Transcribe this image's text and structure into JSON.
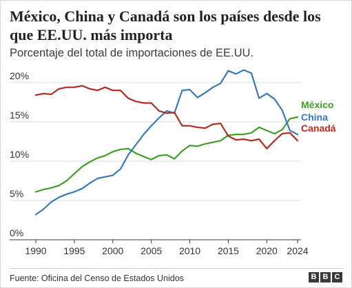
{
  "chart_data": {
    "type": "line",
    "title": "México, China y Canadá son los países desde los que EE.UU. más importa",
    "subtitle": "Porcentaje del total de importaciones de EE.UU.",
    "source": "Fuente: Oficina del Censo de Estados Unidos",
    "brand": [
      "B",
      "B",
      "C"
    ],
    "xlim": [
      1990,
      2024
    ],
    "ylim": [
      0,
      22
    ],
    "x_ticks": [
      1990,
      1995,
      2000,
      2005,
      2010,
      2015,
      2020,
      2024
    ],
    "x_tick_labels": [
      "1990",
      "1995",
      "2000",
      "2005",
      "2010",
      "2015",
      "2020",
      "2024"
    ],
    "y_ticks": [
      0,
      5,
      10,
      15,
      20
    ],
    "y_tick_labels": [
      "0%",
      "5%",
      "10%",
      "15%",
      "20%"
    ],
    "grid": "horizontal",
    "series": [
      {
        "name": "México",
        "color": "#3f9e2a",
        "x": [
          1990,
          1991,
          1992,
          1993,
          1994,
          1995,
          1996,
          1997,
          1998,
          1999,
          2000,
          2001,
          2002,
          2003,
          2004,
          2005,
          2006,
          2007,
          2008,
          2009,
          2010,
          2011,
          2012,
          2013,
          2014,
          2015,
          2016,
          2017,
          2018,
          2019,
          2020,
          2021,
          2022,
          2023,
          2024
        ],
        "values": [
          6.1,
          6.4,
          6.6,
          6.9,
          7.5,
          8.4,
          9.3,
          9.9,
          10.4,
          10.7,
          11.2,
          11.5,
          11.6,
          11.0,
          10.6,
          10.2,
          10.7,
          10.8,
          10.3,
          11.3,
          12.0,
          11.9,
          12.2,
          12.4,
          12.6,
          13.3,
          13.4,
          13.4,
          13.6,
          14.3,
          13.9,
          13.5,
          14.0,
          15.4,
          15.6
        ]
      },
      {
        "name": "China",
        "color": "#3a78b3",
        "x": [
          1990,
          1991,
          1992,
          1993,
          1994,
          1995,
          1996,
          1997,
          1998,
          1999,
          2000,
          2001,
          2002,
          2003,
          2004,
          2005,
          2006,
          2007,
          2008,
          2009,
          2010,
          2011,
          2012,
          2013,
          2014,
          2015,
          2016,
          2017,
          2018,
          2019,
          2020,
          2021,
          2022,
          2023,
          2024
        ],
        "values": [
          3.2,
          3.9,
          4.8,
          5.4,
          5.8,
          6.1,
          6.5,
          7.2,
          7.8,
          8.0,
          8.2,
          9.0,
          10.8,
          12.1,
          13.4,
          14.5,
          15.5,
          16.4,
          16.1,
          19.0,
          19.1,
          18.1,
          18.7,
          19.4,
          19.9,
          21.5,
          21.1,
          21.6,
          21.2,
          18.0,
          18.6,
          17.9,
          16.5,
          13.9,
          13.4
        ]
      },
      {
        "name": "Canadá",
        "color": "#b02a23",
        "x": [
          1990,
          1991,
          1992,
          1993,
          1994,
          1995,
          1996,
          1997,
          1998,
          1999,
          2000,
          2001,
          2002,
          2003,
          2004,
          2005,
          2006,
          2007,
          2008,
          2009,
          2010,
          2011,
          2012,
          2013,
          2014,
          2015,
          2016,
          2017,
          2018,
          2019,
          2020,
          2021,
          2022,
          2023,
          2024
        ],
        "values": [
          18.4,
          18.6,
          18.5,
          19.2,
          19.4,
          19.4,
          19.6,
          19.2,
          19.0,
          19.4,
          19.0,
          19.0,
          18.0,
          17.6,
          17.4,
          17.4,
          16.4,
          16.1,
          16.2,
          14.5,
          14.5,
          14.3,
          14.2,
          14.7,
          14.8,
          13.2,
          12.7,
          12.8,
          12.6,
          12.8,
          11.6,
          12.6,
          13.5,
          13.6,
          12.6
        ]
      }
    ]
  }
}
